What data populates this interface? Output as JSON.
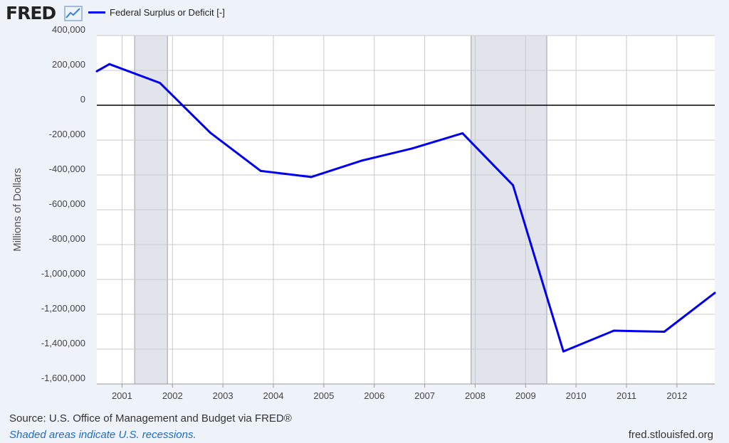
{
  "header": {
    "logo_text": "FRED",
    "logo_icon": "line-chart-icon",
    "legend_label": "Federal Surplus or Deficit [-]"
  },
  "colors": {
    "series": "#0000ee",
    "recession": "#e1e5eb",
    "plot_bg": "#ffffff",
    "page_bg": "#eef3fa",
    "grid": "#c9c9c9",
    "zero_line": "#000000"
  },
  "chart_data": {
    "type": "line",
    "title": "",
    "xlabel": "",
    "ylabel": "Millions of Dollars",
    "xlim": [
      2000.5,
      2012.75
    ],
    "ylim": [
      -1600000,
      400000
    ],
    "x_ticks": [
      2001,
      2002,
      2003,
      2004,
      2005,
      2006,
      2007,
      2008,
      2009,
      2010,
      2011,
      2012
    ],
    "y_ticks": [
      400000,
      200000,
      0,
      -200000,
      -400000,
      -600000,
      -800000,
      -1000000,
      -1200000,
      -1400000,
      -1600000
    ],
    "y_tick_labels": [
      "400,000",
      "200,000",
      "0",
      "-200,000",
      "-400,000",
      "-600,000",
      "-800,000",
      "-1,000,000",
      "-1,200,000",
      "-1,400,000",
      "-1,600,000"
    ],
    "grid": true,
    "recessions": [
      [
        2001.25,
        2001.9
      ],
      [
        2007.92,
        2009.42
      ]
    ],
    "series": [
      {
        "name": "Federal Surplus or Deficit [-]",
        "x": [
          2000.5,
          2000.75,
          2001.75,
          2002.75,
          2003.75,
          2004.75,
          2005.75,
          2006.75,
          2007.75,
          2008.75,
          2009.75,
          2010.75,
          2011.75,
          2012.75
        ],
        "values": [
          195000,
          236000,
          128000,
          -158000,
          -377000,
          -412000,
          -318000,
          -248000,
          -161000,
          -459000,
          -1413000,
          -1294000,
          -1300000,
          -1077000
        ]
      }
    ]
  },
  "footer": {
    "source": "Source: U.S. Office of Management and Budget via FRED®",
    "note": "Shaded areas indicate U.S. recessions.",
    "url": "fred.stlouisfed.org"
  }
}
